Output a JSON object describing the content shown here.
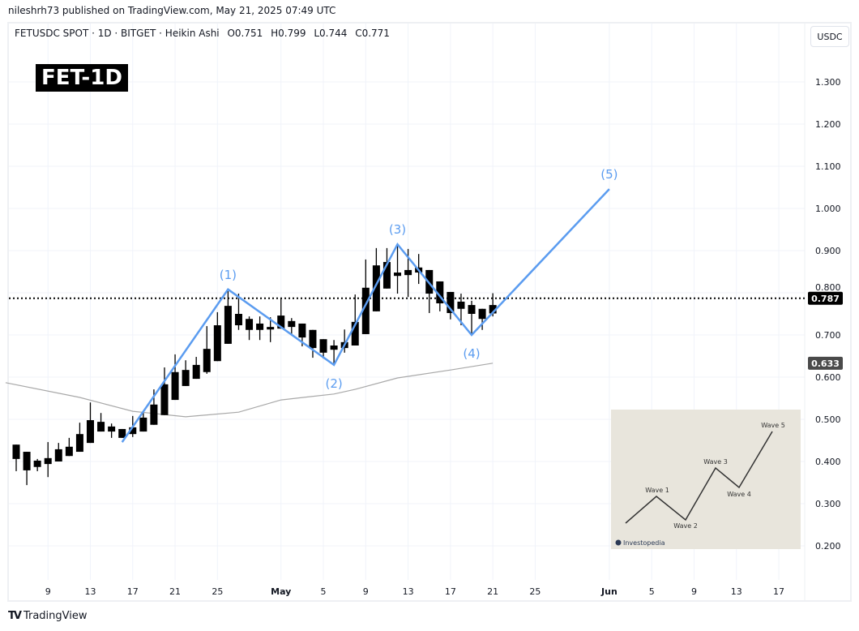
{
  "header": {
    "published": "nileshrh73 published on TradingView.com, May 21, 2025 07:49 UTC"
  },
  "legend": {
    "symbol": "FETUSDC SPOT · 1D · BITGET · Heikin Ashi",
    "open": "O0.751",
    "high": "H0.799",
    "low": "L0.744",
    "close": "C0.771"
  },
  "badge": "FET-1D",
  "currency": "USDC",
  "footer": {
    "logo": "TradingView"
  },
  "colors": {
    "candle": "#000000",
    "wave_line": "#5b9cf0",
    "wave_label": "#5b9cf0",
    "ma_line": "#a8a8a8",
    "price_line": "#000000"
  },
  "chart_data": {
    "type": "candlestick",
    "title": "",
    "ylim": [
      0.15,
      1.35
    ],
    "xlim": [
      "2025-04-05",
      "2025-06-19"
    ],
    "grid": true,
    "y_ticks": [
      "1.300",
      "1.200",
      "1.100",
      "1.000",
      "0.900",
      "0.800",
      "0.700",
      "0.600",
      "0.500",
      "0.400",
      "0.300",
      "0.200"
    ],
    "x_ticks": [
      {
        "date": "2025-04-09",
        "label": "9"
      },
      {
        "date": "2025-04-13",
        "label": "13"
      },
      {
        "date": "2025-04-17",
        "label": "17"
      },
      {
        "date": "2025-04-21",
        "label": "21"
      },
      {
        "date": "2025-04-25",
        "label": "25"
      },
      {
        "date": "2025-05-01",
        "label": "May"
      },
      {
        "date": "2025-05-05",
        "label": "5"
      },
      {
        "date": "2025-05-09",
        "label": "9"
      },
      {
        "date": "2025-05-13",
        "label": "13"
      },
      {
        "date": "2025-05-17",
        "label": "17"
      },
      {
        "date": "2025-05-21",
        "label": "21"
      },
      {
        "date": "2025-05-25",
        "label": "25"
      },
      {
        "date": "2025-06-01",
        "label": "Jun"
      },
      {
        "date": "2025-06-05",
        "label": "5"
      },
      {
        "date": "2025-06-09",
        "label": "9"
      },
      {
        "date": "2025-06-13",
        "label": "13"
      },
      {
        "date": "2025-06-17",
        "label": "17"
      }
    ],
    "candles_columns": [
      "date",
      "open",
      "high",
      "low",
      "close"
    ],
    "candles": [
      [
        "2025-04-06",
        0.44,
        0.44,
        0.377,
        0.406
      ],
      [
        "2025-04-07",
        0.423,
        0.423,
        0.344,
        0.379
      ],
      [
        "2025-04-08",
        0.402,
        0.406,
        0.377,
        0.387
      ],
      [
        "2025-04-09",
        0.394,
        0.446,
        0.363,
        0.408
      ],
      [
        "2025-04-10",
        0.4,
        0.444,
        0.4,
        0.429
      ],
      [
        "2025-04-11",
        0.413,
        0.456,
        0.413,
        0.435
      ],
      [
        "2025-04-12",
        0.423,
        0.492,
        0.423,
        0.465
      ],
      [
        "2025-04-13",
        0.444,
        0.54,
        0.444,
        0.498
      ],
      [
        "2025-04-14",
        0.494,
        0.515,
        0.471,
        0.471
      ],
      [
        "2025-04-15",
        0.483,
        0.49,
        0.456,
        0.471
      ],
      [
        "2025-04-16",
        0.477,
        0.477,
        0.456,
        0.456
      ],
      [
        "2025-04-17",
        0.465,
        0.508,
        0.458,
        0.481
      ],
      [
        "2025-04-18",
        0.471,
        0.519,
        0.471,
        0.504
      ],
      [
        "2025-04-19",
        0.487,
        0.571,
        0.487,
        0.535
      ],
      [
        "2025-04-20",
        0.51,
        0.623,
        0.51,
        0.583
      ],
      [
        "2025-04-21",
        0.546,
        0.654,
        0.546,
        0.612
      ],
      [
        "2025-04-22",
        0.579,
        0.64,
        0.579,
        0.617
      ],
      [
        "2025-04-23",
        0.596,
        0.648,
        0.596,
        0.629
      ],
      [
        "2025-04-24",
        0.612,
        0.721,
        0.608,
        0.667
      ],
      [
        "2025-04-25",
        0.638,
        0.754,
        0.638,
        0.723
      ],
      [
        "2025-04-26",
        0.679,
        0.804,
        0.679,
        0.769
      ],
      [
        "2025-04-27",
        0.75,
        0.798,
        0.712,
        0.723
      ],
      [
        "2025-04-28",
        0.738,
        0.744,
        0.688,
        0.712
      ],
      [
        "2025-04-29",
        0.727,
        0.744,
        0.688,
        0.712
      ],
      [
        "2025-04-30",
        0.719,
        0.742,
        0.683,
        0.713
      ],
      [
        "2025-05-01",
        0.715,
        0.788,
        0.715,
        0.746
      ],
      [
        "2025-05-02",
        0.733,
        0.74,
        0.702,
        0.719
      ],
      [
        "2025-05-03",
        0.727,
        0.727,
        0.673,
        0.694
      ],
      [
        "2025-05-04",
        0.712,
        0.712,
        0.646,
        0.669
      ],
      [
        "2025-05-05",
        0.69,
        0.69,
        0.644,
        0.658
      ],
      [
        "2025-05-06",
        0.675,
        0.688,
        0.627,
        0.665
      ],
      [
        "2025-05-07",
        0.669,
        0.713,
        0.658,
        0.683
      ],
      [
        "2025-05-08",
        0.675,
        0.796,
        0.675,
        0.731
      ],
      [
        "2025-05-09",
        0.702,
        0.879,
        0.702,
        0.812
      ],
      [
        "2025-05-10",
        0.756,
        0.906,
        0.756,
        0.865
      ],
      [
        "2025-05-11",
        0.81,
        0.906,
        0.81,
        0.873
      ],
      [
        "2025-05-12",
        0.84,
        0.912,
        0.798,
        0.848
      ],
      [
        "2025-05-13",
        0.842,
        0.904,
        0.79,
        0.854
      ],
      [
        "2025-05-14",
        0.848,
        0.892,
        0.821,
        0.86
      ],
      [
        "2025-05-15",
        0.854,
        0.854,
        0.752,
        0.798
      ],
      [
        "2025-05-16",
        0.827,
        0.827,
        0.756,
        0.775
      ],
      [
        "2025-05-17",
        0.802,
        0.802,
        0.737,
        0.752
      ],
      [
        "2025-05-18",
        0.779,
        0.798,
        0.723,
        0.762
      ],
      [
        "2025-05-19",
        0.771,
        0.781,
        0.702,
        0.75
      ],
      [
        "2025-05-20",
        0.762,
        0.762,
        0.712,
        0.738
      ],
      [
        "2025-05-21",
        0.751,
        0.799,
        0.744,
        0.771
      ]
    ],
    "moving_average": [
      [
        "2025-04-05",
        0.587
      ],
      [
        "2025-04-12",
        0.552
      ],
      [
        "2025-04-17",
        0.519
      ],
      [
        "2025-04-22",
        0.506
      ],
      [
        "2025-04-27",
        0.517
      ],
      [
        "2025-05-01",
        0.546
      ],
      [
        "2025-05-06",
        0.56
      ],
      [
        "2025-05-08",
        0.571
      ],
      [
        "2025-05-12",
        0.598
      ],
      [
        "2025-05-17",
        0.617
      ],
      [
        "2025-05-21",
        0.633
      ]
    ],
    "current_price": {
      "value": 0.787,
      "label": "0.787"
    },
    "ma_price": {
      "value": 0.633,
      "label": "0.633"
    },
    "wave_points": [
      {
        "date": "2025-04-16",
        "value": 0.446,
        "label": ""
      },
      {
        "date": "2025-04-26",
        "value": 0.808,
        "label": "(1)",
        "pos": "above"
      },
      {
        "date": "2025-05-06",
        "value": 0.629,
        "label": "(2)",
        "pos": "below"
      },
      {
        "date": "2025-05-12",
        "value": 0.915,
        "label": "(3)",
        "pos": "above"
      },
      {
        "date": "2025-05-19",
        "value": 0.7,
        "label": "(4)",
        "pos": "below"
      },
      {
        "date": "2025-06-01",
        "value": 1.046,
        "label": "(5)",
        "pos": "above"
      }
    ]
  },
  "inset": {
    "labels": [
      "Wave 1",
      "Wave 2",
      "Wave 3",
      "Wave 4",
      "Wave 5"
    ],
    "source": "Investopedia"
  }
}
